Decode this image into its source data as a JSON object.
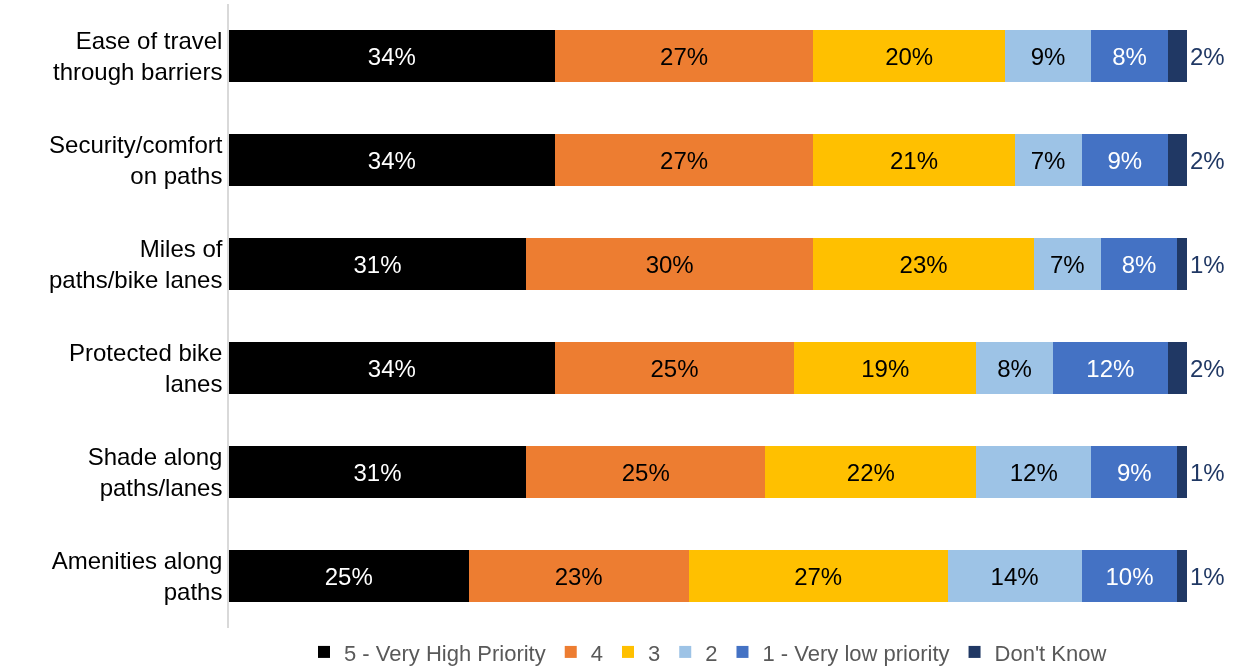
{
  "chart_data": {
    "type": "bar",
    "orientation": "horizontal",
    "stacked": true,
    "legend": "bottom",
    "tick_labels": "y",
    "categories": [
      "Ease of travel through barriers",
      "Security/comfort on paths",
      "Miles of paths/bike lanes",
      "Protected bike lanes",
      "Shade along paths/lanes",
      "Amenities along paths"
    ],
    "series": [
      {
        "name": "5 - Very High Priority",
        "color": "#000000",
        "values": [
          34,
          34,
          31,
          34,
          31,
          25
        ],
        "value_labels": [
          "34%",
          "34%",
          "31%",
          "34%",
          "31%",
          "25%"
        ]
      },
      {
        "name": "4",
        "color": "#ed7d31",
        "values": [
          27,
          27,
          30,
          25,
          25,
          23
        ],
        "value_labels": [
          "27%",
          "27%",
          "30%",
          "25%",
          "25%",
          "23%"
        ]
      },
      {
        "name": "3",
        "color": "#ffc000",
        "values": [
          20,
          21,
          23,
          19,
          22,
          27
        ],
        "value_labels": [
          "20%",
          "21%",
          "23%",
          "19%",
          "22%",
          "27%"
        ]
      },
      {
        "name": "2",
        "color": "#9dc3e6",
        "values": [
          9,
          7,
          7,
          8,
          12,
          14
        ],
        "value_labels": [
          "9%",
          "7%",
          "7%",
          "8%",
          "12%",
          "14%"
        ]
      },
      {
        "name": "1 - Very low priority",
        "color": "#4472c4",
        "values": [
          8,
          9,
          8,
          12,
          9,
          10
        ],
        "value_labels": [
          "8%",
          "9%",
          "8%",
          "12%",
          "9%",
          "10%"
        ]
      },
      {
        "name": "Don't Know",
        "color": "#203864",
        "values": [
          2,
          2,
          1,
          2,
          1,
          1
        ],
        "value_labels": [
          "2%",
          "2%",
          "1%",
          "2%",
          "1%",
          "1%"
        ]
      }
    ]
  }
}
